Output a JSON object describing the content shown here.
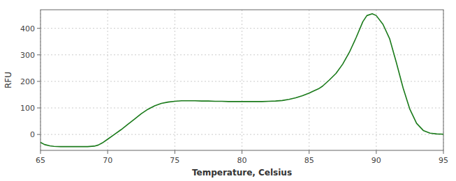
{
  "chart_data": {
    "type": "line",
    "xlabel": "Temperature, Celsius",
    "ylabel": "RFU",
    "color": "#1a7a1a",
    "grid": true,
    "xlim": [
      65,
      95
    ],
    "ylim": [
      -60,
      470
    ],
    "xticks": [
      65,
      70,
      75,
      80,
      85,
      90,
      95
    ],
    "yticks": [
      0,
      100,
      200,
      300,
      400
    ],
    "x": [
      65.0,
      65.3,
      65.7,
      66.0,
      66.5,
      67.0,
      67.5,
      68.0,
      68.5,
      69.0,
      69.3,
      69.6,
      70.0,
      70.5,
      71.0,
      71.5,
      72.0,
      72.5,
      73.0,
      73.5,
      74.0,
      74.5,
      75.0,
      75.5,
      76.0,
      76.5,
      77.0,
      77.5,
      78.0,
      78.5,
      79.0,
      79.5,
      80.0,
      80.5,
      81.0,
      81.5,
      82.0,
      82.5,
      83.0,
      83.5,
      84.0,
      84.5,
      85.0,
      85.3,
      85.7,
      86.0,
      86.5,
      87.0,
      87.5,
      88.0,
      88.5,
      89.0,
      89.3,
      89.7,
      90.0,
      90.5,
      91.0,
      91.5,
      92.0,
      92.5,
      93.0,
      93.5,
      94.0,
      94.5,
      95.0
    ],
    "values": [
      -30,
      -38,
      -43,
      -45,
      -46,
      -46,
      -46,
      -46,
      -46,
      -44,
      -40,
      -32,
      -18,
      0,
      18,
      38,
      58,
      78,
      95,
      108,
      117,
      122,
      125,
      127,
      127,
      127,
      126,
      126,
      125,
      125,
      124,
      124,
      124,
      124,
      124,
      124,
      125,
      126,
      128,
      132,
      138,
      146,
      156,
      163,
      172,
      182,
      205,
      230,
      265,
      310,
      365,
      425,
      448,
      455,
      448,
      415,
      360,
      270,
      175,
      95,
      42,
      15,
      5,
      2,
      1
    ]
  }
}
